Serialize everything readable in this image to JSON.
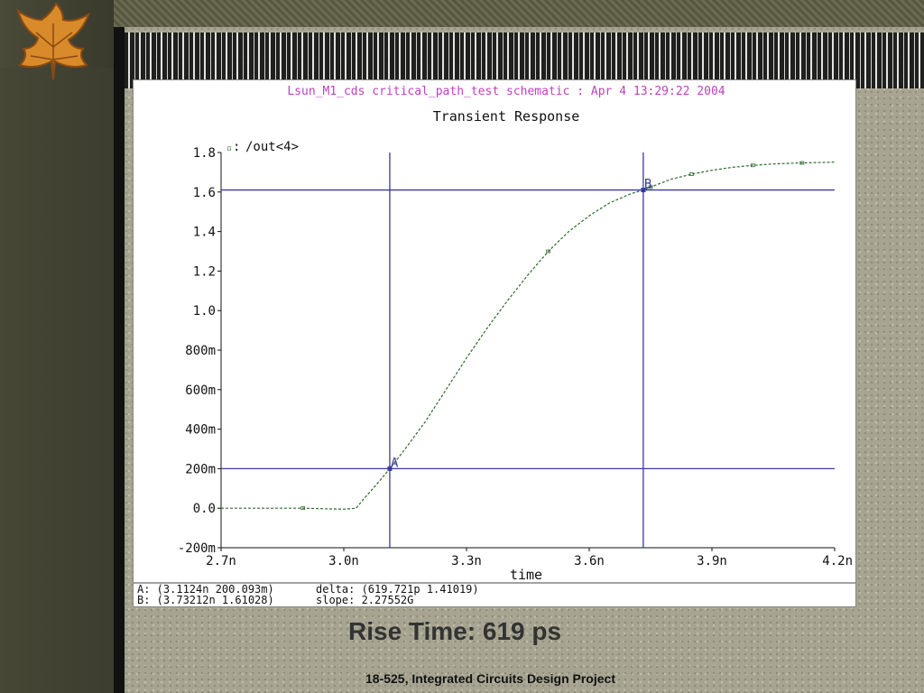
{
  "slide": {
    "caption": "Rise Time: 619 ps",
    "footer": "18-525, Integrated Circuits Design Project"
  },
  "window": {
    "header": "Lsun_M1_cds critical_path_test schematic : Apr  4 13:29:22 2004",
    "header_color": "#c040c0",
    "status": {
      "line1_left": "A: (3.1124n 200.093m)",
      "line2_left": "B: (3.73212n 1.61028)",
      "line1_mid": "delta: (619.721p 1.41019)",
      "line2_mid": "slope: 2.27552G"
    }
  },
  "chart_data": {
    "type": "line",
    "title": "Transient Response",
    "xlabel": "time",
    "ylabel": "",
    "xlim": [
      2.7,
      4.2
    ],
    "ylim": [
      -0.2,
      1.8
    ],
    "x_unit": "n",
    "xticks": [
      2.7,
      3.0,
      3.3,
      3.6,
      3.9,
      4.2
    ],
    "xtick_labels": [
      "2.7n",
      "3.0n",
      "3.3n",
      "3.6n",
      "3.9n",
      "4.2n"
    ],
    "yticks": [
      1.8,
      1.6,
      1.4,
      1.2,
      1.0,
      0.8,
      0.6,
      0.4,
      0.2,
      0.0,
      -0.2
    ],
    "ytick_labels": [
      "1.8",
      "1.6",
      "1.4",
      "1.2",
      "1.0",
      "800m",
      "600m",
      "400m",
      "200m",
      "0.0",
      "-200m"
    ],
    "grid": false,
    "legend": "top-left",
    "series": [
      {
        "name": "/out<4>",
        "color": "#2e6b2e",
        "x": [
          2.7,
          2.9,
          3.0,
          3.03,
          3.05,
          3.08,
          3.1124,
          3.15,
          3.2,
          3.25,
          3.3,
          3.35,
          3.4,
          3.45,
          3.5,
          3.55,
          3.6,
          3.65,
          3.7,
          3.73212,
          3.8,
          3.85,
          3.9,
          3.95,
          4.0,
          4.05,
          4.1,
          4.15,
          4.2
        ],
        "y": [
          0.0,
          0.0,
          -0.005,
          0.0,
          0.05,
          0.12,
          0.200093,
          0.3,
          0.44,
          0.6,
          0.76,
          0.91,
          1.05,
          1.18,
          1.3,
          1.4,
          1.48,
          1.545,
          1.59,
          1.61028,
          1.665,
          1.69,
          1.71,
          1.725,
          1.735,
          1.742,
          1.746,
          1.749,
          1.751
        ]
      }
    ],
    "cursors": {
      "vertical": [
        3.1124,
        3.73212
      ],
      "horizontal": [
        0.200093,
        1.61028
      ],
      "markers": [
        {
          "label": "A",
          "x": 3.1124,
          "y": 0.200093
        },
        {
          "label": "B",
          "x": 3.73212,
          "y": 1.61028
        }
      ],
      "color": "#3a3a9a"
    }
  }
}
